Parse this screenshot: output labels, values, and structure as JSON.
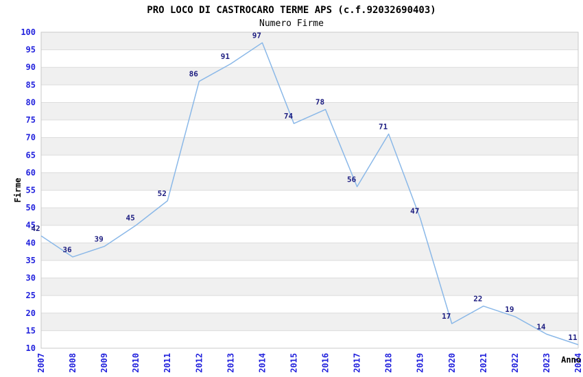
{
  "title": "PRO LOCO DI CASTROCARO TERME APS (c.f.92032690403)",
  "subtitle": "Numero Firme",
  "chart_data": {
    "type": "line",
    "title": "PRO LOCO DI CASTROCARO TERME APS (c.f.92032690403)",
    "subtitle": "Numero Firme",
    "xlabel": "Anno",
    "ylabel": "Firme",
    "x": [
      2007,
      2008,
      2009,
      2010,
      2011,
      2012,
      2013,
      2014,
      2015,
      2016,
      2017,
      2018,
      2019,
      2020,
      2021,
      2022,
      2023,
      2024
    ],
    "values": [
      42,
      36,
      39,
      45,
      52,
      86,
      91,
      97,
      74,
      78,
      56,
      71,
      47,
      17,
      22,
      19,
      14,
      11
    ],
    "ylim": [
      10,
      100
    ],
    "ytick_step": 5,
    "grid": true,
    "legend": "none",
    "colors": {
      "line": "#8ab8e8",
      "tick_label": "#2222dd",
      "data_label": "#1c1c80",
      "axis_label": "#000000",
      "band": "#f0f0f0",
      "band_alt": "#ffffff",
      "gridline": "#dcdcdc",
      "plot_border": "#c8c8c8",
      "background": "#ffffff"
    }
  }
}
